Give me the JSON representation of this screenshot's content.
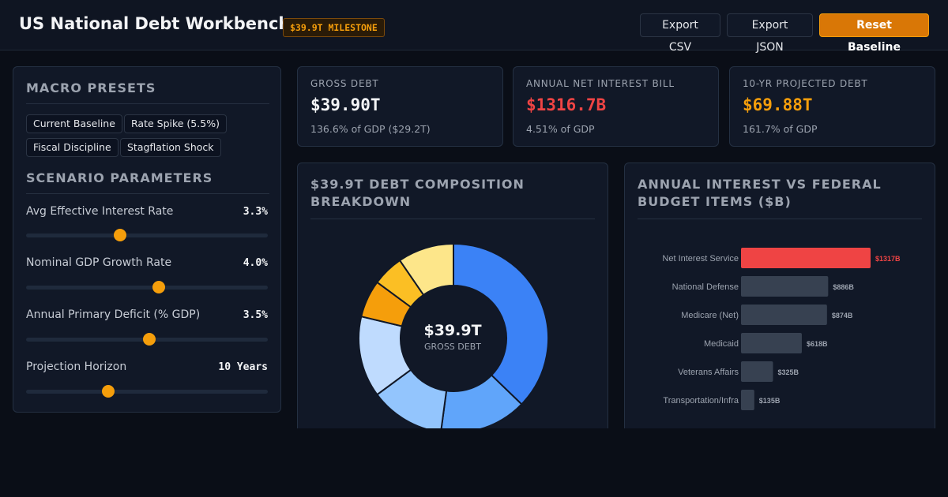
{
  "header": {
    "title": "US National Debt Workbench",
    "badge": "$39.9T MILESTONE",
    "export_csv": "Export CSV",
    "export_json": "Export JSON",
    "reset": "Reset Baseline"
  },
  "sidebar": {
    "presets_title": "MACRO PRESETS",
    "presets": [
      "Current Baseline",
      "Rate Spike (5.5%)",
      "Fiscal Discipline",
      "Stagflation Shock"
    ],
    "params_title": "SCENARIO PARAMETERS",
    "params": [
      {
        "label": "Avg Effective Interest Rate",
        "value": "3.3%",
        "slider_fraction": 0.39
      },
      {
        "label": "Nominal GDP Growth Rate",
        "value": "4.0%",
        "slider_fraction": 0.55
      },
      {
        "label": "Annual Primary Deficit (% GDP)",
        "value": "3.5%",
        "slider_fraction": 0.51
      },
      {
        "label": "Projection Horizon",
        "value": "10 Years",
        "slider_fraction": 0.34
      }
    ]
  },
  "kpis": [
    {
      "label": "GROSS DEBT",
      "value": "$39.90T",
      "sub": "136.6% of GDP ($29.2T)",
      "color": "#f3f4f6"
    },
    {
      "label": "ANNUAL NET INTEREST BILL",
      "value": "$1316.7B",
      "sub": "4.51% of GDP",
      "color": "#ef4444"
    },
    {
      "label": "10-YR PROJECTED DEBT",
      "value": "$69.88T",
      "sub": "161.7% of GDP",
      "color": "#f59e0b"
    }
  ],
  "colors": {
    "accent": "#f59e0b",
    "danger": "#ef4444",
    "bar_default": "#374151"
  },
  "chart_data": [
    {
      "type": "pie",
      "title": "$39.9T DEBT COMPOSITION BREAKDOWN",
      "center_value": "$39.9T",
      "center_label": "GROSS DEBT",
      "values": [
        35,
        14,
        12,
        13,
        6,
        5,
        9
      ],
      "colors": [
        "#3b82f6",
        "#60a5fa",
        "#93c5fd",
        "#bfdbfe",
        "#f59e0b",
        "#fbbf24",
        "#fde68a"
      ]
    },
    {
      "type": "bar",
      "title": "ANNUAL INTEREST VS FEDERAL BUDGET ITEMS ($B)",
      "categories": [
        "Net Interest Service",
        "National Defense",
        "Medicare (Net)",
        "Medicaid",
        "Veterans Affairs",
        "Transportation/Infra"
      ],
      "values": [
        1317,
        886,
        874,
        618,
        325,
        135
      ],
      "labels": [
        "$1317B",
        "$886B",
        "$874B",
        "$618B",
        "$325B",
        "$135B"
      ],
      "xlim": [
        0,
        1317
      ]
    }
  ]
}
